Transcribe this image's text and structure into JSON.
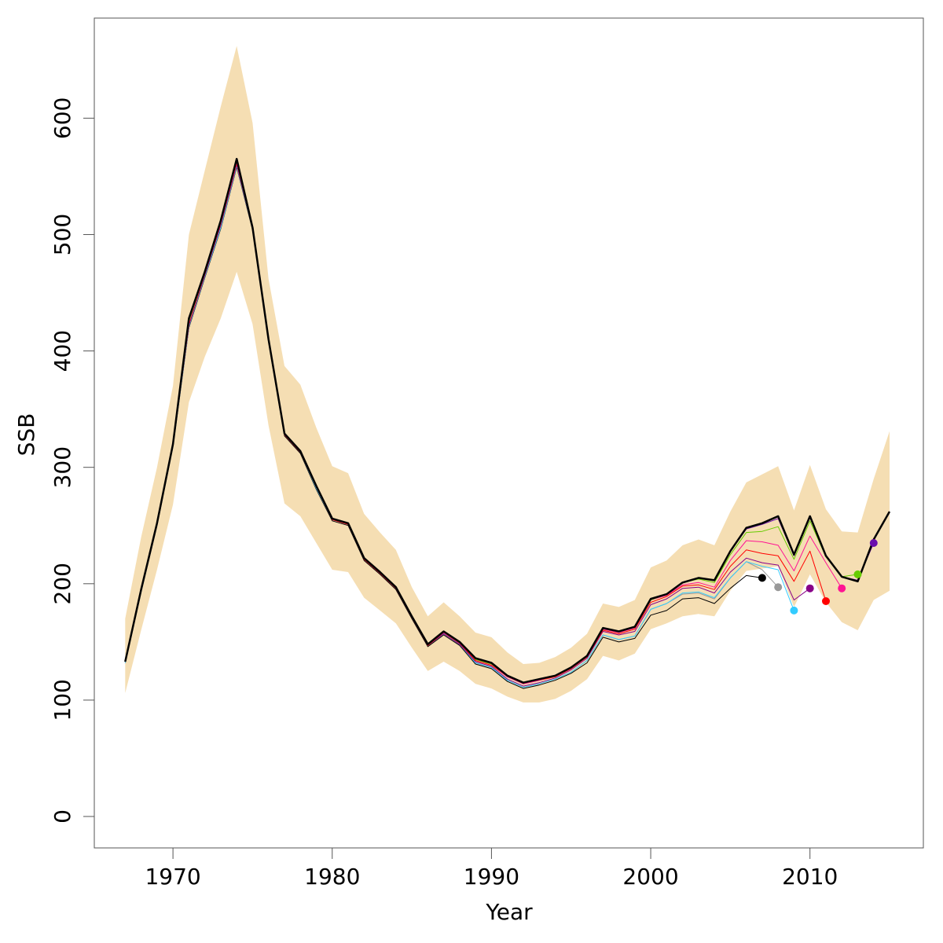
{
  "chart_data": {
    "type": "line",
    "xlabel": "Year",
    "ylabel": "SSB",
    "xlim": [
      1964.5,
      1917.1
    ],
    "ylim": [
      -27,
      686
    ],
    "xticks": [
      1970,
      1980,
      1990,
      2000,
      2010
    ],
    "yticks": [
      0,
      100,
      200,
      300,
      400,
      500,
      600
    ],
    "grid": false,
    "legend": "none",
    "colors": {
      "band": "#F5DEB3",
      "main": "#000000",
      "hindcast": [
        "#000000",
        "#999999",
        "#33CCFF",
        "#880088",
        "#FF0000",
        "#FF1493",
        "#66CC00",
        "#6A0DAD"
      ]
    },
    "years": [
      1967,
      1968,
      1969,
      1970,
      1971,
      1972,
      1973,
      1974,
      1975,
      1976,
      1977,
      1978,
      1979,
      1980,
      1981,
      1982,
      1983,
      1984,
      1985,
      1986,
      1987,
      1988,
      1989,
      1990,
      1991,
      1992,
      1993,
      1994,
      1995,
      1996,
      1997,
      1998,
      1999,
      2000,
      2001,
      2002,
      2003,
      2004,
      2005,
      2006,
      2007,
      2008,
      2009,
      2010,
      2011,
      2012,
      2013,
      2014,
      2015
    ],
    "band_upper": [
      170,
      240,
      300,
      370,
      500,
      555,
      610,
      662,
      596,
      462,
      387,
      371,
      334,
      301,
      295,
      260,
      244,
      229,
      197,
      172,
      184,
      172,
      158,
      154,
      141,
      131,
      132,
      137,
      145,
      157,
      183,
      180,
      186,
      214,
      220,
      233,
      238,
      233,
      262,
      287,
      294,
      301,
      263,
      302,
      264,
      245,
      244,
      290,
      331
    ],
    "band_lower": [
      106,
      160,
      212,
      268,
      356,
      395,
      428,
      468,
      423,
      336,
      269,
      258,
      235,
      212,
      210,
      188,
      177,
      166,
      145,
      125,
      133,
      125,
      114,
      110,
      103,
      98,
      98,
      101,
      108,
      118,
      138,
      134,
      140,
      161,
      166,
      172,
      174,
      172,
      194,
      211,
      213,
      215,
      180,
      208,
      184,
      167,
      160,
      186,
      194
    ],
    "ssb": [
      133,
      195,
      252,
      320,
      428,
      468,
      512,
      565,
      506,
      410,
      329,
      314,
      284,
      256,
      252,
      222,
      210,
      197,
      172,
      148,
      159,
      150,
      136,
      132,
      121,
      115,
      118,
      121,
      128,
      138,
      162,
      159,
      163,
      187,
      191,
      201,
      205,
      203,
      228,
      248,
      252,
      258,
      225,
      258,
      224,
      206,
      202,
      238,
      262
    ],
    "hindcasts": [
      {
        "end": 2007,
        "values": [
          132,
          193,
          250,
          318,
          420,
          463,
          505,
          558,
          504,
          408,
          327,
          312,
          281,
          254,
          250,
          220,
          208,
          195,
          170,
          146,
          156,
          147,
          131,
          127,
          116,
          110,
          113,
          117,
          123,
          132,
          154,
          150,
          153,
          173,
          177,
          187,
          188,
          183,
          196,
          207,
          205
        ]
      },
      {
        "end": 2008,
        "values": [
          132,
          193,
          250,
          318,
          421,
          464,
          506,
          559,
          505,
          409,
          328,
          313,
          282,
          255,
          251,
          221,
          209,
          196,
          171,
          147,
          157,
          148,
          132,
          128,
          117,
          111,
          114,
          118,
          124,
          134,
          156,
          152,
          155,
          178,
          183,
          191,
          192,
          187,
          205,
          219,
          212,
          197
        ]
      },
      {
        "end": 2009,
        "values": [
          132,
          193,
          251,
          318,
          421,
          464,
          506,
          559,
          505,
          409,
          328,
          313,
          282,
          255,
          251,
          221,
          209,
          196,
          171,
          147,
          157,
          148,
          132,
          128,
          117,
          111,
          114,
          118,
          124,
          134,
          156,
          152,
          155,
          178,
          183,
          192,
          193,
          188,
          205,
          219,
          215,
          212,
          177
        ]
      },
      {
        "end": 2010,
        "values": [
          133,
          194,
          251,
          319,
          422,
          465,
          508,
          560,
          505,
          409,
          328,
          313,
          283,
          255,
          251,
          221,
          209,
          196,
          171,
          147,
          157,
          148,
          133,
          129,
          118,
          112,
          115,
          119,
          126,
          136,
          159,
          156,
          159,
          182,
          187,
          196,
          197,
          192,
          210,
          222,
          218,
          216,
          186,
          196
        ]
      },
      {
        "end": 2011,
        "values": [
          133,
          194,
          251,
          319,
          423,
          466,
          509,
          561,
          506,
          410,
          328,
          313,
          283,
          255,
          251,
          221,
          209,
          196,
          171,
          147,
          158,
          149,
          134,
          130,
          120,
          114,
          117,
          120,
          127,
          137,
          160,
          157,
          161,
          184,
          189,
          198,
          199,
          195,
          215,
          229,
          226,
          224,
          202,
          228,
          185
        ]
      },
      {
        "end": 2012,
        "values": [
          133,
          195,
          252,
          320,
          424,
          467,
          510,
          562,
          506,
          410,
          329,
          314,
          284,
          256,
          252,
          222,
          210,
          197,
          172,
          148,
          158,
          150,
          135,
          131,
          120,
          114,
          117,
          121,
          128,
          138,
          161,
          158,
          162,
          186,
          190,
          199,
          201,
          197,
          220,
          237,
          236,
          233,
          211,
          241,
          218,
          196
        ]
      },
      {
        "end": 2013,
        "values": [
          133,
          195,
          252,
          320,
          425,
          467,
          511,
          563,
          506,
          410,
          329,
          314,
          284,
          256,
          252,
          222,
          210,
          197,
          172,
          148,
          159,
          150,
          135,
          131,
          121,
          115,
          118,
          121,
          128,
          138,
          162,
          159,
          163,
          186,
          191,
          201,
          204,
          201,
          225,
          244,
          245,
          249,
          221,
          254,
          223,
          206,
          208
        ]
      },
      {
        "end": 2014,
        "values": [
          133,
          195,
          252,
          320,
          426,
          468,
          511,
          564,
          506,
          410,
          329,
          314,
          284,
          256,
          252,
          222,
          210,
          197,
          172,
          148,
          159,
          150,
          136,
          132,
          121,
          115,
          118,
          121,
          128,
          138,
          162,
          159,
          163,
          187,
          191,
          201,
          205,
          203,
          228,
          247,
          251,
          256,
          224,
          257,
          224,
          206,
          203,
          235
        ]
      }
    ]
  }
}
